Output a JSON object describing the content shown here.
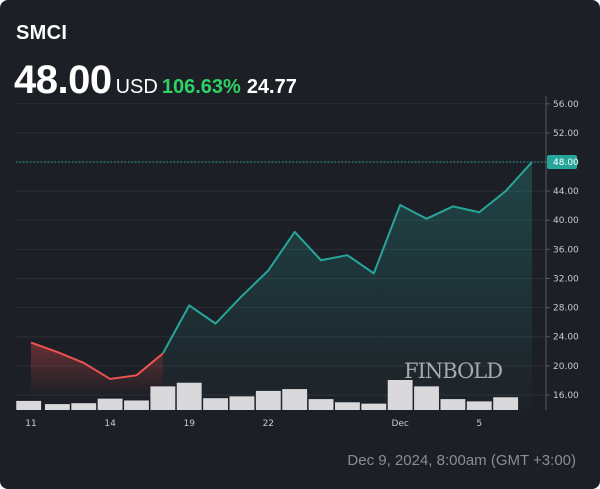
{
  "header": {
    "ticker": "SMCI",
    "price": "48.00",
    "currency": "USD",
    "change_pct": "106.63%",
    "change_abs": "24.77"
  },
  "footer": {
    "timestamp": "Dec 9, 2024, 8:00am (GMT +3:00)"
  },
  "watermark": "FINBOLD",
  "colors": {
    "background": "#1d1f26",
    "up_line": "#26a69a",
    "down_line": "#ef5350",
    "volume": "#d9d9db",
    "positive_text": "#2fd164",
    "price_label_bg": "#26a69a"
  },
  "chart_data": {
    "type": "line",
    "title": "SMCI",
    "y_axis": {
      "ticks": [
        "56.00",
        "52.00",
        "48.00",
        "44.00",
        "40.00",
        "36.00",
        "32.00",
        "28.00",
        "24.00",
        "20.00",
        "16.00"
      ],
      "tick_values": [
        56,
        52,
        48,
        44,
        40,
        36,
        32,
        28,
        24,
        20,
        16
      ],
      "ylim": [
        14,
        57.5
      ],
      "position": "right"
    },
    "x_axis": {
      "ticks": [
        "11",
        "14",
        "19",
        "22",
        "Dec",
        "5"
      ],
      "tick_index": [
        0,
        3,
        6,
        9,
        14,
        17
      ]
    },
    "current_price": 48.0,
    "price_label": "48.00",
    "series": [
      {
        "dates": [
          "Nov 11",
          "Nov 12",
          "Nov 13",
          "Nov 14",
          "Nov 15",
          "Nov 18",
          "Nov 19",
          "Nov 20",
          "Nov 21",
          "Nov 22",
          "Nov 25",
          "Nov 26",
          "Nov 27",
          "Nov 29",
          "Dec 2",
          "Dec 3",
          "Dec 4",
          "Dec 5",
          "Dec 6",
          "Dec 9"
        ],
        "values": [
          23.2,
          21.9,
          20.4,
          18.2,
          18.7,
          21.7,
          28.3,
          25.8,
          29.6,
          33.1,
          38.4,
          34.5,
          35.2,
          32.7,
          42.1,
          40.2,
          41.9,
          41.1,
          44.0,
          48.0
        ]
      }
    ],
    "volume": [
      1.0,
      0.65,
      0.75,
      1.25,
      1.05,
      2.6,
      3.0,
      1.3,
      1.5,
      2.1,
      2.3,
      1.2,
      0.85,
      0.7,
      3.3,
      2.6,
      1.2,
      0.95,
      1.4,
      0.0
    ]
  }
}
